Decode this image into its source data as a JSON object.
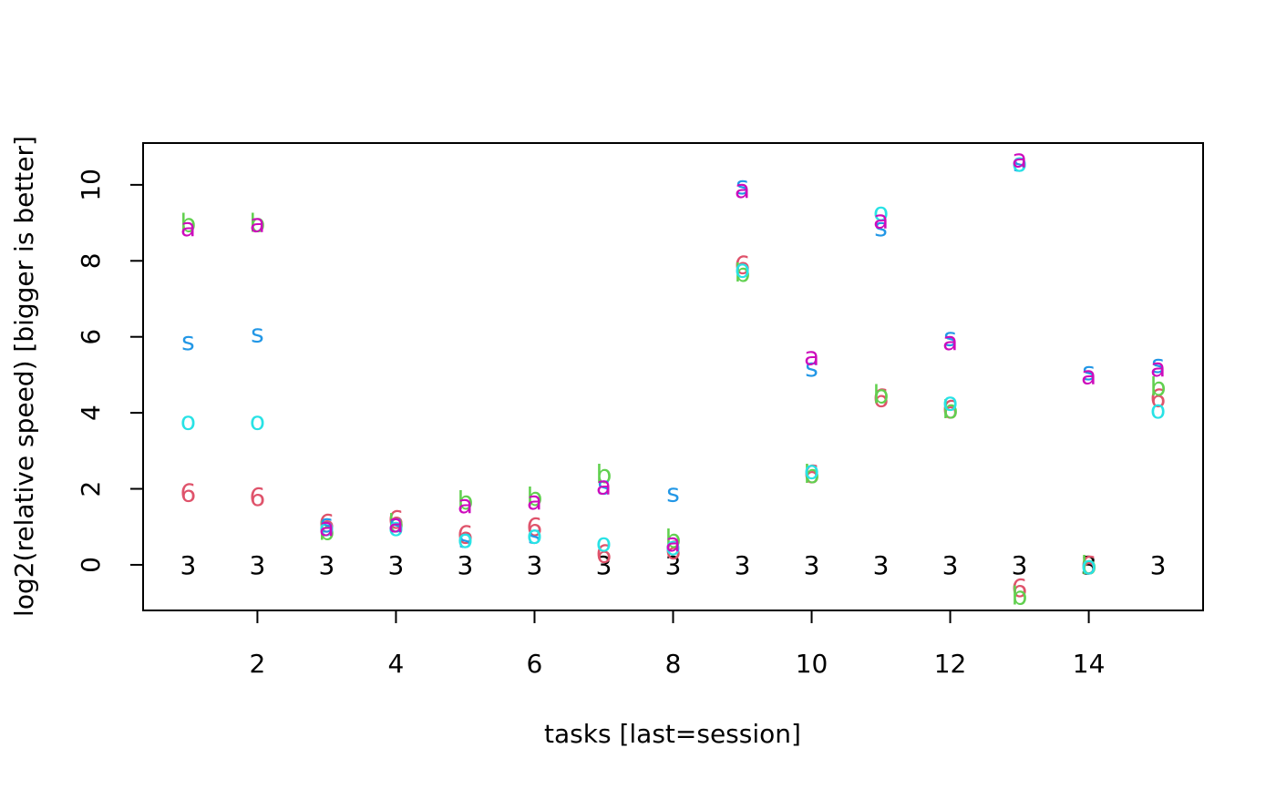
{
  "chart_data": {
    "type": "scatter",
    "title": "",
    "xlabel": "tasks [last=session]",
    "ylabel": "log2(relative speed) [bigger is better]",
    "xlim": [
      0.35,
      15.65
    ],
    "ylim": [
      -1.2,
      11.1
    ],
    "x_ticks": [
      2,
      4,
      6,
      8,
      10,
      12,
      14
    ],
    "y_ticks": [
      0,
      2,
      4,
      6,
      8,
      10
    ],
    "grid": false,
    "legend": "none",
    "marker_colors": {
      "3": "#000000",
      "6": "#DF536B",
      "b": "#61D04F",
      "s": "#2297E6",
      "o": "#28E2E5",
      "a": "#CD0BBC"
    },
    "points": [
      {
        "x": 1,
        "y": 0,
        "marker": "3"
      },
      {
        "x": 1,
        "y": 1.9,
        "marker": "6"
      },
      {
        "x": 1,
        "y": 9.0,
        "marker": "b"
      },
      {
        "x": 1,
        "y": 5.9,
        "marker": "s"
      },
      {
        "x": 1,
        "y": 3.8,
        "marker": "o"
      },
      {
        "x": 1,
        "y": 8.9,
        "marker": "a"
      },
      {
        "x": 2,
        "y": 0,
        "marker": "3"
      },
      {
        "x": 2,
        "y": 1.8,
        "marker": "6"
      },
      {
        "x": 2,
        "y": 9.0,
        "marker": "b"
      },
      {
        "x": 2,
        "y": 6.1,
        "marker": "s"
      },
      {
        "x": 2,
        "y": 3.8,
        "marker": "o"
      },
      {
        "x": 2,
        "y": 9.0,
        "marker": "a"
      },
      {
        "x": 3,
        "y": 0,
        "marker": "3"
      },
      {
        "x": 3,
        "y": 1.1,
        "marker": "6"
      },
      {
        "x": 3,
        "y": 0.9,
        "marker": "b"
      },
      {
        "x": 3,
        "y": 1.1,
        "marker": "s"
      },
      {
        "x": 3,
        "y": 1.0,
        "marker": "o"
      },
      {
        "x": 3,
        "y": 1.0,
        "marker": "a"
      },
      {
        "x": 4,
        "y": 0,
        "marker": "3"
      },
      {
        "x": 4,
        "y": 1.2,
        "marker": "6"
      },
      {
        "x": 4,
        "y": 1.1,
        "marker": "b"
      },
      {
        "x": 4,
        "y": 1.1,
        "marker": "s"
      },
      {
        "x": 4,
        "y": 1.0,
        "marker": "o"
      },
      {
        "x": 4,
        "y": 1.1,
        "marker": "a"
      },
      {
        "x": 5,
        "y": 0,
        "marker": "3"
      },
      {
        "x": 5,
        "y": 0.8,
        "marker": "6"
      },
      {
        "x": 5,
        "y": 1.7,
        "marker": "b"
      },
      {
        "x": 5,
        "y": 0.7,
        "marker": "s"
      },
      {
        "x": 5,
        "y": 0.7,
        "marker": "o"
      },
      {
        "x": 5,
        "y": 1.6,
        "marker": "a"
      },
      {
        "x": 6,
        "y": 0,
        "marker": "3"
      },
      {
        "x": 6,
        "y": 1.0,
        "marker": "6"
      },
      {
        "x": 6,
        "y": 1.8,
        "marker": "b"
      },
      {
        "x": 6,
        "y": 0.8,
        "marker": "s"
      },
      {
        "x": 6,
        "y": 0.8,
        "marker": "o"
      },
      {
        "x": 6,
        "y": 1.7,
        "marker": "a"
      },
      {
        "x": 7,
        "y": 0,
        "marker": "3"
      },
      {
        "x": 7,
        "y": 0.3,
        "marker": "6"
      },
      {
        "x": 7,
        "y": 2.4,
        "marker": "b"
      },
      {
        "x": 7,
        "y": 2.1,
        "marker": "s"
      },
      {
        "x": 7,
        "y": 0.6,
        "marker": "o"
      },
      {
        "x": 7,
        "y": 2.1,
        "marker": "a"
      },
      {
        "x": 8,
        "y": 0,
        "marker": "3"
      },
      {
        "x": 8,
        "y": 0.4,
        "marker": "6"
      },
      {
        "x": 8,
        "y": 0.7,
        "marker": "b"
      },
      {
        "x": 8,
        "y": 1.9,
        "marker": "s"
      },
      {
        "x": 8,
        "y": 0.5,
        "marker": "o"
      },
      {
        "x": 8,
        "y": 0.6,
        "marker": "a"
      },
      {
        "x": 9,
        "y": 0,
        "marker": "3"
      },
      {
        "x": 9,
        "y": 7.9,
        "marker": "6"
      },
      {
        "x": 9,
        "y": 7.7,
        "marker": "b"
      },
      {
        "x": 9,
        "y": 10.0,
        "marker": "s"
      },
      {
        "x": 9,
        "y": 7.8,
        "marker": "o"
      },
      {
        "x": 9,
        "y": 9.9,
        "marker": "a"
      },
      {
        "x": 10,
        "y": 0,
        "marker": "3"
      },
      {
        "x": 10,
        "y": 2.4,
        "marker": "6"
      },
      {
        "x": 10,
        "y": 2.4,
        "marker": "b"
      },
      {
        "x": 10,
        "y": 5.2,
        "marker": "s"
      },
      {
        "x": 10,
        "y": 2.5,
        "marker": "o"
      },
      {
        "x": 10,
        "y": 5.5,
        "marker": "a"
      },
      {
        "x": 11,
        "y": 0,
        "marker": "3"
      },
      {
        "x": 11,
        "y": 4.4,
        "marker": "6"
      },
      {
        "x": 11,
        "y": 4.5,
        "marker": "b"
      },
      {
        "x": 11,
        "y": 8.9,
        "marker": "s"
      },
      {
        "x": 11,
        "y": 9.3,
        "marker": "o"
      },
      {
        "x": 11,
        "y": 9.1,
        "marker": "a"
      },
      {
        "x": 12,
        "y": 0,
        "marker": "3"
      },
      {
        "x": 12,
        "y": 4.1,
        "marker": "6"
      },
      {
        "x": 12,
        "y": 4.1,
        "marker": "b"
      },
      {
        "x": 12,
        "y": 6.0,
        "marker": "s"
      },
      {
        "x": 12,
        "y": 4.3,
        "marker": "o"
      },
      {
        "x": 12,
        "y": 5.9,
        "marker": "a"
      },
      {
        "x": 13,
        "y": 0,
        "marker": "3"
      },
      {
        "x": 13,
        "y": -0.6,
        "marker": "6"
      },
      {
        "x": 13,
        "y": -0.8,
        "marker": "b"
      },
      {
        "x": 13,
        "y": 10.6,
        "marker": "s"
      },
      {
        "x": 13,
        "y": 10.6,
        "marker": "o"
      },
      {
        "x": 13,
        "y": 10.7,
        "marker": "a"
      },
      {
        "x": 14,
        "y": 0,
        "marker": "3"
      },
      {
        "x": 14,
        "y": 0,
        "marker": "6"
      },
      {
        "x": 14,
        "y": 0,
        "marker": "b"
      },
      {
        "x": 14,
        "y": 5.1,
        "marker": "s"
      },
      {
        "x": 14,
        "y": 0,
        "marker": "o"
      },
      {
        "x": 14,
        "y": 5.0,
        "marker": "a"
      },
      {
        "x": 15,
        "y": 0,
        "marker": "3"
      },
      {
        "x": 15,
        "y": 4.4,
        "marker": "6"
      },
      {
        "x": 15,
        "y": 4.7,
        "marker": "b"
      },
      {
        "x": 15,
        "y": 5.3,
        "marker": "s"
      },
      {
        "x": 15,
        "y": 4.1,
        "marker": "o"
      },
      {
        "x": 15,
        "y": 5.2,
        "marker": "a"
      }
    ]
  }
}
